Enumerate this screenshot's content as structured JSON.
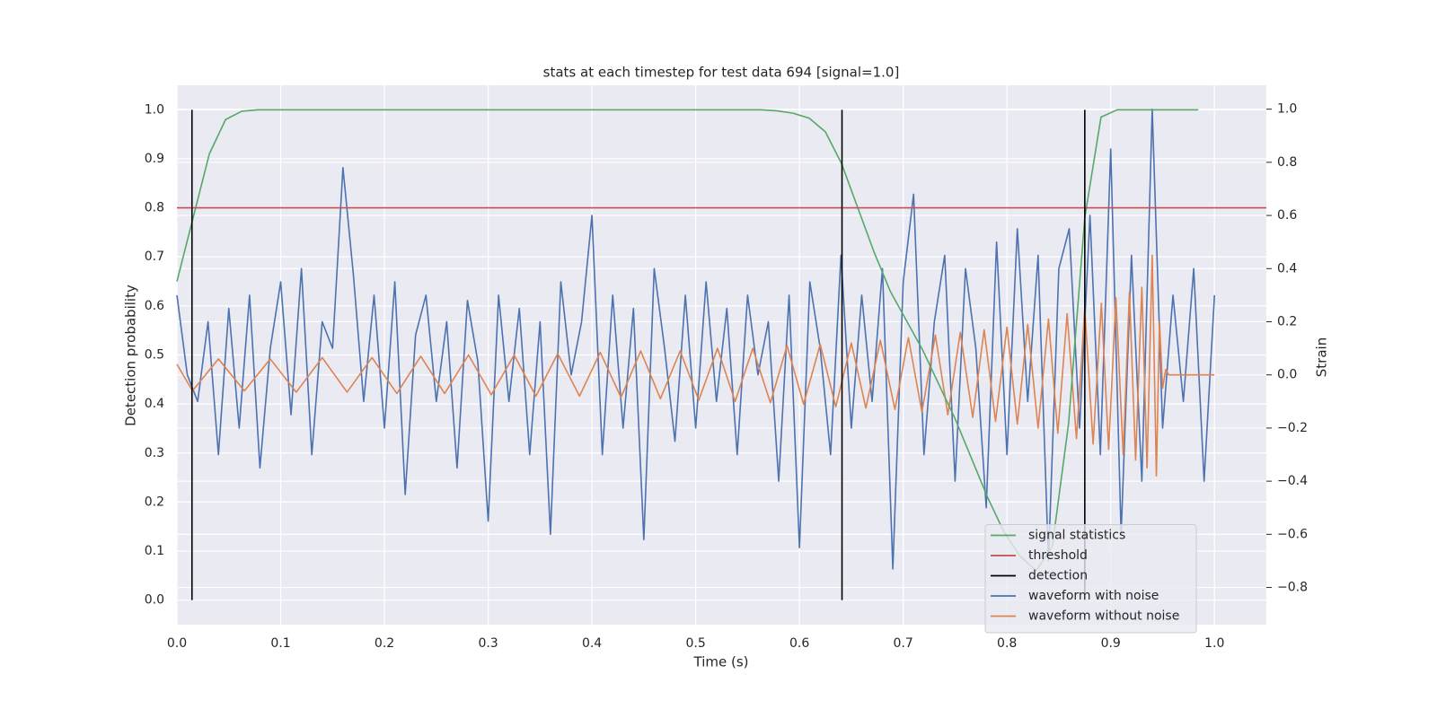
{
  "chart_data": {
    "type": "line",
    "title": "stats at each timestep for test data 694 [signal=1.0]",
    "x_label": "Time (s)",
    "y_label": "Detection probability",
    "y2_label": "Strain",
    "xlim": [
      0,
      1.05
    ],
    "ylim": [
      -0.05,
      1.05
    ],
    "y2lim": [
      -0.94,
      1.09
    ],
    "xticks": [
      {
        "value": 0,
        "label": "0.0"
      },
      0.1,
      0.2,
      0.3,
      0.4,
      0.5,
      0.6,
      0.7,
      0.8,
      0.9,
      {
        "value": 1,
        "label": "1.0"
      }
    ],
    "yticks": [
      {
        "value": 0,
        "label": "0.0"
      },
      0.1,
      0.2,
      0.3,
      0.4,
      0.5,
      0.6,
      0.7,
      0.8,
      0.9,
      {
        "value": 1,
        "label": "1.0"
      }
    ],
    "y2ticks": [
      {
        "value": -0.8,
        "label": "−0.8"
      },
      {
        "value": -0.6,
        "label": "−0.6"
      },
      {
        "value": -0.4,
        "label": "−0.4"
      },
      {
        "value": -0.2,
        "label": "−0.2"
      },
      {
        "value": 0,
        "label": "0.0"
      },
      0.2,
      0.4,
      0.6,
      0.8,
      {
        "value": 1,
        "label": "1.0"
      }
    ],
    "grid": true,
    "legend": "lower right",
    "series": [
      {
        "name": "signal statistics",
        "color": "#55a868",
        "kind": "line",
        "x": [
          0,
          0.015625,
          0.03125,
          0.046875,
          0.0625,
          0.078125,
          0.09375,
          0.109375,
          0.125,
          0.140625,
          0.15625,
          0.171875,
          0.1875,
          0.203125,
          0.21875,
          0.234375,
          0.25,
          0.265625,
          0.28125,
          0.296875,
          0.3125,
          0.328125,
          0.34375,
          0.359375,
          0.375,
          0.390625,
          0.40625,
          0.421875,
          0.4375,
          0.453125,
          0.46875,
          0.484375,
          0.5,
          0.515625,
          0.53125,
          0.546875,
          0.5625,
          0.578125,
          0.59375,
          0.609375,
          0.625,
          0.640625,
          0.65625,
          0.671875,
          0.6875,
          0.703125,
          0.71875,
          0.734375,
          0.75,
          0.765625,
          0.78125,
          0.796875,
          0.8125,
          0.828125,
          0.84375,
          0.859375,
          0.875,
          0.890625,
          0.90625,
          0.921875,
          0.9375,
          0.953125,
          0.96875,
          0.984375
        ],
        "values": [
          0.65,
          0.78,
          0.91,
          0.98,
          0.997,
          1,
          1,
          1,
          1,
          1,
          1,
          1,
          1,
          1,
          1,
          1,
          1,
          1,
          1,
          1,
          1,
          1,
          1,
          1,
          1,
          1,
          1,
          1,
          1,
          1,
          1,
          1,
          1,
          1,
          1,
          1,
          1,
          0.998,
          0.993,
          0.983,
          0.955,
          0.89,
          0.8,
          0.71,
          0.63,
          0.57,
          0.51,
          0.44,
          0.37,
          0.29,
          0.21,
          0.14,
          0.09,
          0.06,
          0.11,
          0.36,
          0.78,
          0.985,
          1,
          1,
          1,
          1,
          1,
          1
        ]
      },
      {
        "name": "threshold",
        "color": "#c44e52",
        "kind": "line",
        "x": [
          0,
          1.05
        ],
        "values": [
          0.8,
          0.8
        ]
      },
      {
        "name": "detection",
        "color": "#000000",
        "kind": "vlines",
        "x": [
          0.0145,
          0.641,
          0.875
        ],
        "ymin": 0,
        "ymax": 1
      },
      {
        "name": "waveform with noise",
        "color": "#4c72b0",
        "kind": "line",
        "axis": "y2",
        "x": [
          0,
          0.01,
          0.02,
          0.03,
          0.04,
          0.05,
          0.06,
          0.07,
          0.08,
          0.09,
          0.1,
          0.11,
          0.12,
          0.13,
          0.14,
          0.15,
          0.16,
          0.17,
          0.18,
          0.19,
          0.2,
          0.21,
          0.22,
          0.23,
          0.24,
          0.25,
          0.26,
          0.27,
          0.28,
          0.29,
          0.3,
          0.31,
          0.32,
          0.33,
          0.34,
          0.35,
          0.36,
          0.37,
          0.38,
          0.39,
          0.4,
          0.41,
          0.42,
          0.43,
          0.44,
          0.45,
          0.46,
          0.47,
          0.48,
          0.49,
          0.5,
          0.51,
          0.52,
          0.53,
          0.54,
          0.55,
          0.56,
          0.57,
          0.58,
          0.59,
          0.6,
          0.61,
          0.62,
          0.63,
          0.64,
          0.65,
          0.66,
          0.67,
          0.68,
          0.69,
          0.7,
          0.71,
          0.72,
          0.73,
          0.74,
          0.75,
          0.76,
          0.77,
          0.78,
          0.79,
          0.8,
          0.81,
          0.82,
          0.83,
          0.84,
          0.85,
          0.86,
          0.87,
          0.88,
          0.89,
          0.9,
          0.91,
          0.92,
          0.93,
          0.94,
          0.95,
          0.96,
          0.97,
          0.98,
          0.99,
          1
        ],
        "values": [
          0.3,
          0.0,
          -0.1,
          0.2,
          -0.3,
          0.25,
          -0.2,
          0.3,
          -0.35,
          0.1,
          0.35,
          -0.15,
          0.4,
          -0.3,
          0.2,
          0.1,
          0.78,
          0.38,
          -0.1,
          0.3,
          -0.2,
          0.35,
          -0.45,
          0.15,
          0.3,
          -0.1,
          0.2,
          -0.35,
          0.28,
          0.05,
          -0.55,
          0.3,
          -0.1,
          0.25,
          -0.3,
          0.2,
          -0.6,
          0.35,
          0.0,
          0.2,
          0.6,
          -0.3,
          0.3,
          -0.2,
          0.25,
          -0.62,
          0.4,
          0.1,
          -0.25,
          0.3,
          -0.2,
          0.35,
          -0.1,
          0.25,
          -0.3,
          0.3,
          0.0,
          0.2,
          -0.4,
          0.3,
          -0.65,
          0.35,
          0.1,
          -0.3,
          0.45,
          -0.2,
          0.3,
          -0.1,
          0.4,
          -0.73,
          0.35,
          0.68,
          -0.3,
          0.2,
          0.45,
          -0.4,
          0.4,
          0.1,
          -0.5,
          0.5,
          -0.3,
          0.55,
          -0.1,
          0.45,
          -0.7,
          0.4,
          0.55,
          -0.2,
          0.6,
          -0.3,
          0.85,
          -0.6,
          0.45,
          -0.4,
          1.0,
          -0.2,
          0.3,
          -0.1,
          0.4,
          -0.4,
          0.3
        ]
      },
      {
        "name": "waveform without noise",
        "color": "#dd8452",
        "kind": "line",
        "axis": "y2",
        "x": [
          0,
          0.015,
          0.04,
          0.065,
          0.09,
          0.115,
          0.14,
          0.164,
          0.188,
          0.212,
          0.235,
          0.258,
          0.281,
          0.303,
          0.325,
          0.346,
          0.367,
          0.388,
          0.408,
          0.428,
          0.447,
          0.466,
          0.485,
          0.503,
          0.521,
          0.538,
          0.555,
          0.572,
          0.588,
          0.604,
          0.62,
          0.635,
          0.65,
          0.664,
          0.678,
          0.692,
          0.705,
          0.718,
          0.731,
          0.743,
          0.755,
          0.767,
          0.778,
          0.789,
          0.8,
          0.81,
          0.82,
          0.83,
          0.84,
          0.849,
          0.858,
          0.867,
          0.875,
          0.883,
          0.891,
          0.898,
          0.905,
          0.912,
          0.918,
          0.924,
          0.93,
          0.935,
          0.94,
          0.944,
          0.947,
          0.95,
          0.953,
          0.956,
          1
        ],
        "values": [
          0.04,
          -0.06,
          0.06,
          -0.06,
          0.06,
          -0.065,
          0.065,
          -0.065,
          0.065,
          -0.07,
          0.07,
          -0.07,
          0.075,
          -0.075,
          0.075,
          -0.08,
          0.08,
          -0.08,
          0.085,
          -0.085,
          0.09,
          -0.09,
          0.09,
          -0.095,
          0.1,
          -0.1,
          0.1,
          -0.105,
          0.11,
          -0.11,
          0.115,
          -0.12,
          0.12,
          -0.125,
          0.13,
          -0.13,
          0.14,
          -0.14,
          0.15,
          -0.15,
          0.16,
          -0.16,
          0.17,
          -0.175,
          0.18,
          -0.185,
          0.19,
          -0.2,
          0.21,
          -0.22,
          0.23,
          -0.24,
          0.25,
          -0.26,
          0.27,
          -0.28,
          0.29,
          -0.3,
          0.31,
          -0.32,
          0.33,
          -0.35,
          0.45,
          -0.38,
          0.2,
          -0.05,
          0.02,
          0,
          0
        ]
      }
    ]
  }
}
